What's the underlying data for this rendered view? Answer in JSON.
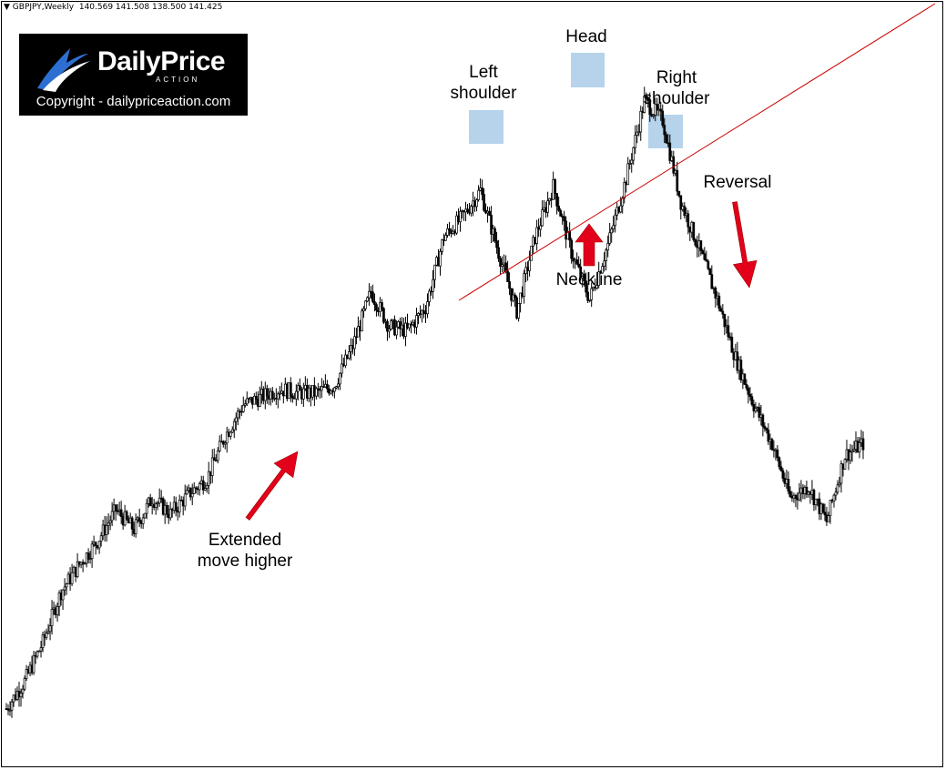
{
  "header": {
    "symbol": "GBPJPY,Weekly",
    "ohlc": "140.569 141.508 138.500 141.425"
  },
  "logo": {
    "brand": "DailyPrice",
    "sub": "ACTION",
    "copyright": "Copyright - dailypriceaction.com"
  },
  "colors": {
    "neckline": "#cc0000",
    "arrow": "#e2001a",
    "highlight": "#a9cbe8",
    "candle": "#000000"
  },
  "annotations": {
    "left_shoulder": "Left\nshoulder",
    "head": "Head",
    "right_shoulder": "Right\nshoulder",
    "neckline": "Neckline",
    "reversal": "Reversal",
    "extended": "Extended\nmove higher"
  },
  "chart_data": {
    "type": "candlestick",
    "symbol": "GBPJPY",
    "timeframe": "Weekly",
    "last_ohlc": {
      "open": 140.569,
      "high": 141.508,
      "low": 138.5,
      "close": 141.425
    },
    "pattern": "head-and-shoulders",
    "close_path": [
      [
        0,
        75
      ],
      [
        10,
        82
      ],
      [
        20,
        92
      ],
      [
        30,
        105
      ],
      [
        40,
        112
      ],
      [
        50,
        118
      ],
      [
        60,
        126
      ],
      [
        70,
        121
      ],
      [
        80,
        129
      ],
      [
        90,
        125
      ],
      [
        100,
        130
      ],
      [
        110,
        134
      ],
      [
        120,
        145
      ],
      [
        130,
        153
      ],
      [
        140,
        155
      ],
      [
        150,
        157
      ],
      [
        160,
        156
      ],
      [
        170,
        156
      ],
      [
        180,
        158
      ],
      [
        190,
        168
      ],
      [
        200,
        182
      ],
      [
        210,
        173
      ],
      [
        220,
        172
      ],
      [
        230,
        178
      ],
      [
        240,
        196
      ],
      [
        250,
        201
      ],
      [
        260,
        208
      ],
      [
        270,
        192
      ],
      [
        280,
        177
      ],
      [
        290,
        196
      ],
      [
        300,
        209
      ],
      [
        310,
        192
      ],
      [
        320,
        180
      ],
      [
        330,
        194
      ],
      [
        340,
        211
      ],
      [
        350,
        231
      ],
      [
        360,
        226
      ],
      [
        370,
        205
      ],
      [
        380,
        193
      ],
      [
        390,
        180
      ],
      [
        400,
        165
      ],
      [
        410,
        153
      ],
      [
        420,
        143
      ],
      [
        430,
        129
      ],
      [
        440,
        132
      ],
      [
        450,
        123
      ],
      [
        460,
        140
      ],
      [
        470,
        143
      ]
    ]
  }
}
